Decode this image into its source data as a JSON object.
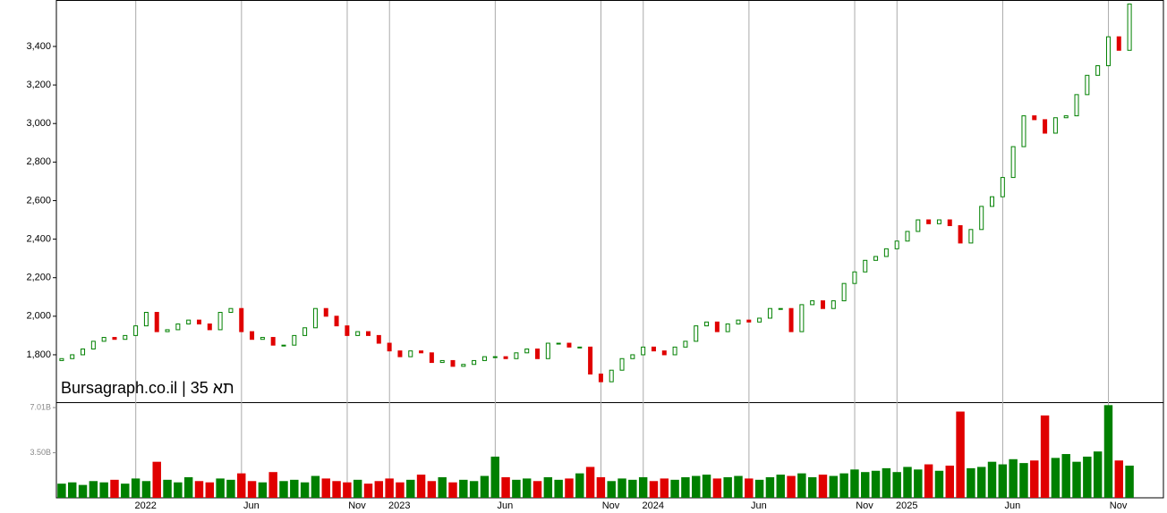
{
  "chart_data": {
    "type": "candlestick",
    "title": "Bursagraph.co.il | תא 35",
    "categories": [
      null,
      null,
      null,
      null,
      null,
      null,
      null,
      "2022",
      null,
      null,
      null,
      null,
      null,
      null,
      null,
      null,
      null,
      "Jun",
      null,
      null,
      null,
      null,
      null,
      null,
      null,
      null,
      null,
      "Nov",
      null,
      null,
      null,
      "2023",
      null,
      null,
      null,
      null,
      null,
      null,
      null,
      null,
      null,
      "Jun",
      null,
      null,
      null,
      null,
      null,
      null,
      null,
      null,
      null,
      "Nov",
      null,
      null,
      null,
      "2024",
      null,
      null,
      null,
      null,
      null,
      null,
      null,
      null,
      null,
      "Jun",
      null,
      null,
      null,
      null,
      null,
      null,
      null,
      null,
      null,
      "Nov",
      null,
      null,
      null,
      "2025",
      null,
      null,
      null,
      null,
      null,
      null,
      null,
      null,
      null,
      "Jun",
      null,
      null,
      null,
      null,
      null,
      null,
      null,
      null,
      null,
      "Nov",
      null,
      null
    ],
    "open": [
      1770,
      1780,
      1800,
      1830,
      1870,
      1890,
      1880,
      1900,
      1950,
      2020,
      1920,
      1930,
      1960,
      1980,
      1960,
      1930,
      2020,
      2040,
      1920,
      1880,
      1890,
      1850,
      1850,
      1900,
      1940,
      2040,
      2000,
      1950,
      1900,
      1920,
      1900,
      1860,
      1820,
      1790,
      1820,
      1810,
      1760,
      1770,
      1740,
      1750,
      1770,
      1790,
      1790,
      1780,
      1810,
      1830,
      1780,
      1860,
      1860,
      1840,
      1840,
      1700,
      1660,
      1720,
      1780,
      1800,
      1840,
      1820,
      1800,
      1840,
      1870,
      1950,
      1970,
      1920,
      1960,
      1980,
      1970,
      1990,
      2040,
      2040,
      1920,
      2060,
      2080,
      2040,
      2080,
      2170,
      2230,
      2290,
      2310,
      2350,
      2390,
      2440,
      2500,
      2480,
      2500,
      2470,
      2380,
      2450,
      2570,
      2620,
      2720,
      2880,
      3040,
      3020,
      2950,
      3030,
      3040,
      3150,
      3250,
      3300,
      3450,
      3380
    ],
    "close": [
      1780,
      1800,
      1830,
      1870,
      1890,
      1880,
      1900,
      1950,
      2020,
      1920,
      1930,
      1960,
      1980,
      1960,
      1930,
      2020,
      2040,
      1920,
      1880,
      1890,
      1850,
      1850,
      1900,
      1940,
      2040,
      2000,
      1950,
      1900,
      1920,
      1900,
      1860,
      1820,
      1790,
      1820,
      1810,
      1760,
      1770,
      1740,
      1750,
      1770,
      1790,
      1790,
      1780,
      1810,
      1830,
      1780,
      1860,
      1860,
      1840,
      1840,
      1700,
      1660,
      1720,
      1780,
      1800,
      1840,
      1820,
      1800,
      1840,
      1870,
      1950,
      1970,
      1920,
      1960,
      1980,
      1970,
      1990,
      2040,
      2040,
      1920,
      2060,
      2080,
      2040,
      2080,
      2170,
      2230,
      2290,
      2310,
      2350,
      2390,
      2440,
      2500,
      2480,
      2500,
      2470,
      2380,
      2450,
      2570,
      2620,
      2720,
      2880,
      3040,
      3020,
      2950,
      3030,
      3040,
      3150,
      3250,
      3300,
      3450,
      3380,
      3620
    ],
    "up_color": "#008000",
    "down_color": "#e00000",
    "ylim": [
      1554,
      3641
    ],
    "yticks": [
      {
        "value": 1800,
        "label": "1,800"
      },
      {
        "value": 2000,
        "label": "2,000"
      },
      {
        "value": 2200,
        "label": "2,200"
      },
      {
        "value": 2400,
        "label": "2,400"
      },
      {
        "value": 2600,
        "label": "2,600"
      },
      {
        "value": 2800,
        "label": "2,800"
      },
      {
        "value": 3000,
        "label": "3,000"
      },
      {
        "value": 3200,
        "label": "3,200"
      },
      {
        "value": 3400,
        "label": "3,400"
      }
    ],
    "grid": true,
    "volume": {
      "values": [
        1.1,
        1.2,
        1.0,
        1.3,
        1.2,
        1.4,
        1.1,
        1.5,
        1.3,
        2.8,
        1.4,
        1.2,
        1.6,
        1.3,
        1.2,
        1.5,
        1.4,
        1.9,
        1.3,
        1.2,
        2.0,
        1.3,
        1.4,
        1.2,
        1.7,
        1.5,
        1.3,
        1.2,
        1.4,
        1.1,
        1.3,
        1.5,
        1.2,
        1.4,
        1.8,
        1.3,
        1.6,
        1.2,
        1.4,
        1.3,
        1.7,
        3.2,
        1.6,
        1.4,
        1.5,
        1.3,
        1.6,
        1.4,
        1.5,
        1.9,
        2.4,
        1.6,
        1.3,
        1.5,
        1.4,
        1.6,
        1.3,
        1.5,
        1.4,
        1.6,
        1.7,
        1.8,
        1.5,
        1.6,
        1.7,
        1.5,
        1.4,
        1.6,
        1.8,
        1.7,
        1.9,
        1.6,
        1.8,
        1.7,
        1.9,
        2.2,
        2.0,
        2.1,
        2.3,
        2.0,
        2.4,
        2.2,
        2.6,
        2.1,
        2.5,
        6.7,
        2.3,
        2.4,
        2.8,
        2.6,
        3.0,
        2.7,
        2.9,
        6.4,
        3.1,
        3.4,
        2.8,
        3.2,
        3.6,
        7.2,
        2.9,
        2.5
      ],
      "ylim": [
        0,
        7.43
      ],
      "yticks": [
        {
          "value": 3.5,
          "label": "3.50B"
        },
        {
          "value": 7.01,
          "label": "7.01B"
        }
      ]
    }
  }
}
